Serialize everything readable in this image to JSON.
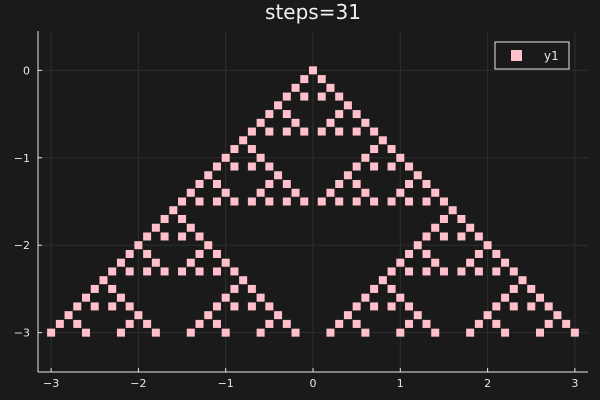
{
  "chart_data": {
    "type": "scatter",
    "title": "steps=31",
    "xlabel": "",
    "ylabel": "",
    "xlim": [
      -3.15,
      3.15
    ],
    "ylim": [
      -3.45,
      0.45
    ],
    "xticks": [
      -3,
      -2,
      -1,
      0,
      1,
      2,
      3
    ],
    "xtick_labels": [
      "−3",
      "−2",
      "−1",
      "0",
      "1",
      "2",
      "3"
    ],
    "yticks": [
      0,
      -1,
      -2,
      -3
    ],
    "ytick_labels": [
      "0",
      "−1",
      "−2",
      "−3"
    ],
    "grid": true,
    "legend_position": "top-right",
    "series": [
      {
        "name": "y1",
        "marker": "square",
        "color": "#ffc0cb",
        "points": [
          {
            "x": 0,
            "y": 0
          },
          {
            "x": -0.1,
            "y": -0.1
          },
          {
            "x": 0.1,
            "y": -0.1
          },
          {
            "x": -0.2,
            "y": -0.2
          },
          {
            "x": 0.2,
            "y": -0.2
          },
          {
            "x": -0.3,
            "y": -0.3
          },
          {
            "x": -0.1,
            "y": -0.3
          },
          {
            "x": 0.1,
            "y": -0.3
          },
          {
            "x": 0.3,
            "y": -0.3
          },
          {
            "x": -0.4,
            "y": -0.4
          },
          {
            "x": 0.4,
            "y": -0.4
          },
          {
            "x": -0.5,
            "y": -0.5
          },
          {
            "x": -0.3,
            "y": -0.5
          },
          {
            "x": 0.3,
            "y": -0.5
          },
          {
            "x": 0.5,
            "y": -0.5
          },
          {
            "x": -0.6,
            "y": -0.6
          },
          {
            "x": -0.2,
            "y": -0.6
          },
          {
            "x": 0.2,
            "y": -0.6
          },
          {
            "x": 0.6,
            "y": -0.6
          },
          {
            "x": -0.7,
            "y": -0.7
          },
          {
            "x": -0.5,
            "y": -0.7
          },
          {
            "x": -0.3,
            "y": -0.7
          },
          {
            "x": -0.1,
            "y": -0.7
          },
          {
            "x": 0.1,
            "y": -0.7
          },
          {
            "x": 0.3,
            "y": -0.7
          },
          {
            "x": 0.5,
            "y": -0.7
          },
          {
            "x": 0.7,
            "y": -0.7
          },
          {
            "x": -0.8,
            "y": -0.8
          },
          {
            "x": 0.8,
            "y": -0.8
          },
          {
            "x": -0.9,
            "y": -0.9
          },
          {
            "x": -0.7,
            "y": -0.9
          },
          {
            "x": 0.7,
            "y": -0.9
          },
          {
            "x": 0.9,
            "y": -0.9
          },
          {
            "x": -1.0,
            "y": -1.0
          },
          {
            "x": -0.6,
            "y": -1.0
          },
          {
            "x": 0.6,
            "y": -1.0
          },
          {
            "x": 1.0,
            "y": -1.0
          },
          {
            "x": -1.1,
            "y": -1.1
          },
          {
            "x": -0.9,
            "y": -1.1
          },
          {
            "x": -0.7,
            "y": -1.1
          },
          {
            "x": -0.5,
            "y": -1.1
          },
          {
            "x": 0.5,
            "y": -1.1
          },
          {
            "x": 0.7,
            "y": -1.1
          },
          {
            "x": 0.9,
            "y": -1.1
          },
          {
            "x": 1.1,
            "y": -1.1
          },
          {
            "x": -1.2,
            "y": -1.2
          },
          {
            "x": -0.4,
            "y": -1.2
          },
          {
            "x": 0.4,
            "y": -1.2
          },
          {
            "x": 1.2,
            "y": -1.2
          },
          {
            "x": -1.3,
            "y": -1.3
          },
          {
            "x": -1.1,
            "y": -1.3
          },
          {
            "x": -0.5,
            "y": -1.3
          },
          {
            "x": -0.3,
            "y": -1.3
          },
          {
            "x": 0.3,
            "y": -1.3
          },
          {
            "x": 0.5,
            "y": -1.3
          },
          {
            "x": 1.1,
            "y": -1.3
          },
          {
            "x": 1.3,
            "y": -1.3
          },
          {
            "x": -1.4,
            "y": -1.4
          },
          {
            "x": -1.0,
            "y": -1.4
          },
          {
            "x": -0.6,
            "y": -1.4
          },
          {
            "x": -0.2,
            "y": -1.4
          },
          {
            "x": 0.2,
            "y": -1.4
          },
          {
            "x": 0.6,
            "y": -1.4
          },
          {
            "x": 1.0,
            "y": -1.4
          },
          {
            "x": 1.4,
            "y": -1.4
          },
          {
            "x": -1.5,
            "y": -1.5
          },
          {
            "x": -1.3,
            "y": -1.5
          },
          {
            "x": -1.1,
            "y": -1.5
          },
          {
            "x": -0.9,
            "y": -1.5
          },
          {
            "x": -0.7,
            "y": -1.5
          },
          {
            "x": -0.5,
            "y": -1.5
          },
          {
            "x": -0.3,
            "y": -1.5
          },
          {
            "x": -0.1,
            "y": -1.5
          },
          {
            "x": 0.1,
            "y": -1.5
          },
          {
            "x": 0.3,
            "y": -1.5
          },
          {
            "x": 0.5,
            "y": -1.5
          },
          {
            "x": 0.7,
            "y": -1.5
          },
          {
            "x": 0.9,
            "y": -1.5
          },
          {
            "x": 1.1,
            "y": -1.5
          },
          {
            "x": 1.3,
            "y": -1.5
          },
          {
            "x": 1.5,
            "y": -1.5
          },
          {
            "x": -1.6,
            "y": -1.6
          },
          {
            "x": 1.6,
            "y": -1.6
          },
          {
            "x": -1.7,
            "y": -1.7
          },
          {
            "x": -1.5,
            "y": -1.7
          },
          {
            "x": 1.5,
            "y": -1.7
          },
          {
            "x": 1.7,
            "y": -1.7
          },
          {
            "x": -1.8,
            "y": -1.8
          },
          {
            "x": -1.4,
            "y": -1.8
          },
          {
            "x": 1.4,
            "y": -1.8
          },
          {
            "x": 1.8,
            "y": -1.8
          },
          {
            "x": -1.9,
            "y": -1.9
          },
          {
            "x": -1.7,
            "y": -1.9
          },
          {
            "x": -1.5,
            "y": -1.9
          },
          {
            "x": -1.3,
            "y": -1.9
          },
          {
            "x": 1.3,
            "y": -1.9
          },
          {
            "x": 1.5,
            "y": -1.9
          },
          {
            "x": 1.7,
            "y": -1.9
          },
          {
            "x": 1.9,
            "y": -1.9
          },
          {
            "x": -2.0,
            "y": -2.0
          },
          {
            "x": -1.2,
            "y": -2.0
          },
          {
            "x": 1.2,
            "y": -2.0
          },
          {
            "x": 2.0,
            "y": -2.0
          },
          {
            "x": -2.1,
            "y": -2.1
          },
          {
            "x": -1.9,
            "y": -2.1
          },
          {
            "x": -1.3,
            "y": -2.1
          },
          {
            "x": -1.1,
            "y": -2.1
          },
          {
            "x": 1.1,
            "y": -2.1
          },
          {
            "x": 1.3,
            "y": -2.1
          },
          {
            "x": 1.9,
            "y": -2.1
          },
          {
            "x": 2.1,
            "y": -2.1
          },
          {
            "x": -2.2,
            "y": -2.2
          },
          {
            "x": -1.8,
            "y": -2.2
          },
          {
            "x": -1.4,
            "y": -2.2
          },
          {
            "x": -1.0,
            "y": -2.2
          },
          {
            "x": 1.0,
            "y": -2.2
          },
          {
            "x": 1.4,
            "y": -2.2
          },
          {
            "x": 1.8,
            "y": -2.2
          },
          {
            "x": 2.2,
            "y": -2.2
          },
          {
            "x": -2.3,
            "y": -2.3
          },
          {
            "x": -2.1,
            "y": -2.3
          },
          {
            "x": -1.9,
            "y": -2.3
          },
          {
            "x": -1.7,
            "y": -2.3
          },
          {
            "x": -1.5,
            "y": -2.3
          },
          {
            "x": -1.3,
            "y": -2.3
          },
          {
            "x": -1.1,
            "y": -2.3
          },
          {
            "x": -0.9,
            "y": -2.3
          },
          {
            "x": 0.9,
            "y": -2.3
          },
          {
            "x": 1.1,
            "y": -2.3
          },
          {
            "x": 1.3,
            "y": -2.3
          },
          {
            "x": 1.5,
            "y": -2.3
          },
          {
            "x": 1.7,
            "y": -2.3
          },
          {
            "x": 1.9,
            "y": -2.3
          },
          {
            "x": 2.1,
            "y": -2.3
          },
          {
            "x": 2.3,
            "y": -2.3
          },
          {
            "x": -2.4,
            "y": -2.4
          },
          {
            "x": -0.8,
            "y": -2.4
          },
          {
            "x": 0.8,
            "y": -2.4
          },
          {
            "x": 2.4,
            "y": -2.4
          },
          {
            "x": -2.5,
            "y": -2.5
          },
          {
            "x": -2.3,
            "y": -2.5
          },
          {
            "x": -0.9,
            "y": -2.5
          },
          {
            "x": -0.7,
            "y": -2.5
          },
          {
            "x": 0.7,
            "y": -2.5
          },
          {
            "x": 0.9,
            "y": -2.5
          },
          {
            "x": 2.3,
            "y": -2.5
          },
          {
            "x": 2.5,
            "y": -2.5
          },
          {
            "x": -2.6,
            "y": -2.6
          },
          {
            "x": -2.2,
            "y": -2.6
          },
          {
            "x": -1.0,
            "y": -2.6
          },
          {
            "x": -0.6,
            "y": -2.6
          },
          {
            "x": 0.6,
            "y": -2.6
          },
          {
            "x": 1.0,
            "y": -2.6
          },
          {
            "x": 2.2,
            "y": -2.6
          },
          {
            "x": 2.6,
            "y": -2.6
          },
          {
            "x": -2.7,
            "y": -2.7
          },
          {
            "x": -2.5,
            "y": -2.7
          },
          {
            "x": -2.3,
            "y": -2.7
          },
          {
            "x": -2.1,
            "y": -2.7
          },
          {
            "x": -1.1,
            "y": -2.7
          },
          {
            "x": -0.9,
            "y": -2.7
          },
          {
            "x": -0.7,
            "y": -2.7
          },
          {
            "x": -0.5,
            "y": -2.7
          },
          {
            "x": 0.5,
            "y": -2.7
          },
          {
            "x": 0.7,
            "y": -2.7
          },
          {
            "x": 0.9,
            "y": -2.7
          },
          {
            "x": 1.1,
            "y": -2.7
          },
          {
            "x": 2.1,
            "y": -2.7
          },
          {
            "x": 2.3,
            "y": -2.7
          },
          {
            "x": 2.5,
            "y": -2.7
          },
          {
            "x": 2.7,
            "y": -2.7
          },
          {
            "x": -2.8,
            "y": -2.8
          },
          {
            "x": -2.0,
            "y": -2.8
          },
          {
            "x": -1.2,
            "y": -2.8
          },
          {
            "x": -0.4,
            "y": -2.8
          },
          {
            "x": 0.4,
            "y": -2.8
          },
          {
            "x": 1.2,
            "y": -2.8
          },
          {
            "x": 2.0,
            "y": -2.8
          },
          {
            "x": 2.8,
            "y": -2.8
          },
          {
            "x": -2.9,
            "y": -2.9
          },
          {
            "x": -2.7,
            "y": -2.9
          },
          {
            "x": -2.1,
            "y": -2.9
          },
          {
            "x": -1.9,
            "y": -2.9
          },
          {
            "x": -1.3,
            "y": -2.9
          },
          {
            "x": -1.1,
            "y": -2.9
          },
          {
            "x": -0.5,
            "y": -2.9
          },
          {
            "x": -0.3,
            "y": -2.9
          },
          {
            "x": 0.3,
            "y": -2.9
          },
          {
            "x": 0.5,
            "y": -2.9
          },
          {
            "x": 1.1,
            "y": -2.9
          },
          {
            "x": 1.3,
            "y": -2.9
          },
          {
            "x": 1.9,
            "y": -2.9
          },
          {
            "x": 2.1,
            "y": -2.9
          },
          {
            "x": 2.7,
            "y": -2.9
          },
          {
            "x": 2.9,
            "y": -2.9
          },
          {
            "x": -3.0,
            "y": -3.0
          },
          {
            "x": -2.6,
            "y": -3.0
          },
          {
            "x": -2.2,
            "y": -3.0
          },
          {
            "x": -1.8,
            "y": -3.0
          },
          {
            "x": -1.4,
            "y": -3.0
          },
          {
            "x": -1.0,
            "y": -3.0
          },
          {
            "x": -0.6,
            "y": -3.0
          },
          {
            "x": -0.2,
            "y": -3.0
          },
          {
            "x": 0.2,
            "y": -3.0
          },
          {
            "x": 0.6,
            "y": -3.0
          },
          {
            "x": 1.0,
            "y": -3.0
          },
          {
            "x": 1.4,
            "y": -3.0
          },
          {
            "x": 1.8,
            "y": -3.0
          },
          {
            "x": 2.2,
            "y": -3.0
          },
          {
            "x": 2.6,
            "y": -3.0
          },
          {
            "x": 3.0,
            "y": -3.0
          }
        ]
      }
    ],
    "colors": {
      "background": "#1a1a1a",
      "axis": "#e6e6e6",
      "grid": "#2e2e2e",
      "legend_border": "#e6e6e6"
    }
  }
}
